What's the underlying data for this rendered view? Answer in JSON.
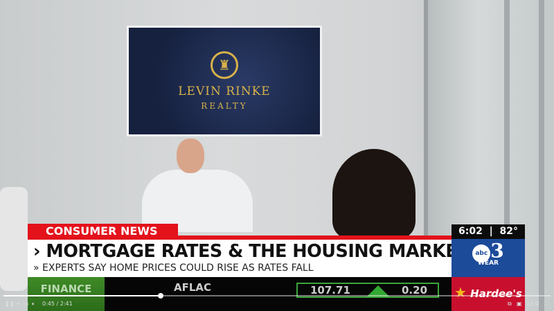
{
  "tv_screen": {
    "brand_line1": "LEVIN RINKE",
    "brand_line2": "REALTY"
  },
  "lower_third": {
    "category": "CONSUMER NEWS",
    "headline": "MORTGAGE RATES & THE HOUSING MARKET",
    "subheadline": "EXPERTS SAY HOME PRICES COULD  RISE AS RATES FALL"
  },
  "ticker": {
    "section": "FINANCE",
    "company": "AFLAC",
    "price": "107.71",
    "change": "0.20",
    "direction": "up"
  },
  "station": {
    "time": "6:02",
    "temp": "82°",
    "network": "abc",
    "channel": "3",
    "callsign": "WEAR",
    "sponsor": "Hardee's"
  },
  "player": {
    "time": "0:45 / 2:41",
    "progress_percent": 28,
    "speed": "1x",
    "icons": [
      "pause-icon",
      "skip-icon",
      "cast-icon",
      "volume-icon",
      "pip-icon",
      "captions-icon",
      "settings-icon",
      "fullscreen-icon"
    ]
  },
  "colors": {
    "red": "#e3121b",
    "blue": "#1c4b9a",
    "green": "#3f8a26"
  }
}
